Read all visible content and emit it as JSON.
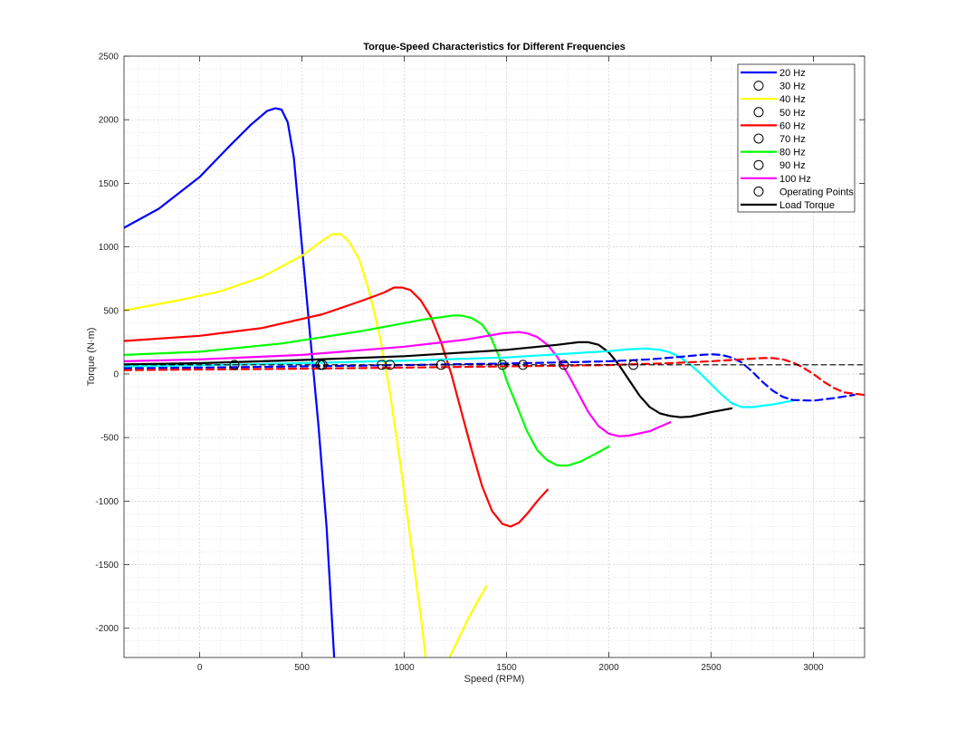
{
  "chart_data": {
    "type": "line",
    "title": "Torque-Speed Characteristics for Different Frequencies",
    "xlabel": "Speed (RPM)",
    "ylabel": "Torque (N·m)",
    "xlim": [
      -370,
      3250
    ],
    "ylim": [
      -2230,
      2500
    ],
    "xticks": [
      0,
      500,
      1000,
      1500,
      2000,
      2500,
      3000
    ],
    "yticks": [
      -2000,
      -1500,
      -1000,
      -500,
      0,
      500,
      1000,
      1500,
      2000,
      2500
    ],
    "grid": true,
    "minor_grid": true,
    "legend_position": "top-right",
    "legend": [
      {
        "label": "20 Hz",
        "marker": "line",
        "color": "#0000FF"
      },
      {
        "label": "30 Hz",
        "marker": "circle",
        "color": "#000000"
      },
      {
        "label": "40 Hz",
        "marker": "line",
        "color": "#FFFF00"
      },
      {
        "label": "50 Hz",
        "marker": "circle",
        "color": "#000000"
      },
      {
        "label": "60 Hz",
        "marker": "line",
        "color": "#FF0000"
      },
      {
        "label": "70 Hz",
        "marker": "circle",
        "color": "#000000"
      },
      {
        "label": "80 Hz",
        "marker": "line",
        "color": "#00FF00"
      },
      {
        "label": "90 Hz",
        "marker": "circle",
        "color": "#000000"
      },
      {
        "label": "100 Hz",
        "marker": "line",
        "color": "#FF00FF"
      },
      {
        "label": "Operating Points",
        "marker": "circle",
        "color": "#000000"
      },
      {
        "label": "Load Torque",
        "marker": "line",
        "color": "#000000"
      }
    ],
    "series": [
      {
        "name": "20 Hz",
        "color": "#0000FF",
        "dash": false,
        "x": [
          -370,
          -200,
          0,
          150,
          250,
          330,
          370,
          400,
          430,
          460,
          500,
          540,
          580,
          620,
          660
        ],
        "y": [
          1150,
          1300,
          1550,
          1800,
          1960,
          2070,
          2090,
          2080,
          1980,
          1700,
          1000,
          300,
          -400,
          -1200,
          -2300
        ]
      },
      {
        "name": "40 Hz",
        "color": "#FFFF00",
        "dash": false,
        "x": [
          -370,
          -100,
          100,
          300,
          500,
          600,
          650,
          690,
          730,
          780,
          830,
          880,
          930,
          980,
          1030,
          1080,
          1110
        ],
        "y": [
          500,
          580,
          650,
          760,
          930,
          1050,
          1100,
          1100,
          1040,
          900,
          640,
          300,
          -150,
          -700,
          -1300,
          -1900,
          -2300
        ]
      },
      {
        "name": "40 Hz",
        "color": "#FFFF00",
        "dash": false,
        "x": [
          1200,
          1260,
          1320,
          1400
        ],
        "y": [
          -2300,
          -2100,
          -1900,
          -1670
        ]
      },
      {
        "name": "60 Hz",
        "color": "#FF0000",
        "dash": false,
        "x": [
          -370,
          0,
          300,
          600,
          800,
          900,
          950,
          990,
          1030,
          1080,
          1130,
          1180,
          1230,
          1280,
          1330,
          1380,
          1430,
          1480,
          1520,
          1560,
          1600,
          1650,
          1700
        ],
        "y": [
          260,
          300,
          360,
          470,
          580,
          640,
          680,
          680,
          660,
          580,
          450,
          250,
          0,
          -300,
          -600,
          -880,
          -1080,
          -1180,
          -1200,
          -1170,
          -1100,
          -1000,
          -910
        ]
      },
      {
        "name": "80 Hz",
        "color": "#00FF00",
        "dash": false,
        "x": [
          -370,
          0,
          400,
          800,
          1100,
          1240,
          1280,
          1330,
          1380,
          1420,
          1460,
          1500,
          1550,
          1600,
          1650,
          1700,
          1750,
          1800,
          1860,
          1920,
          2000
        ],
        "y": [
          150,
          175,
          240,
          340,
          430,
          460,
          460,
          440,
          390,
          300,
          150,
          -50,
          -250,
          -450,
          -600,
          -680,
          -720,
          -720,
          -690,
          -640,
          -570
        ]
      },
      {
        "name": "100 Hz",
        "color": "#FF00FF",
        "dash": false,
        "x": [
          -370,
          0,
          500,
          1000,
          1300,
          1480,
          1560,
          1600,
          1650,
          1700,
          1750,
          1800,
          1850,
          1900,
          1950,
          2000,
          2050,
          2100,
          2200,
          2300
        ],
        "y": [
          100,
          115,
          150,
          215,
          270,
          320,
          330,
          320,
          290,
          230,
          130,
          0,
          -150,
          -300,
          -410,
          -470,
          -490,
          -485,
          -450,
          -380
        ]
      },
      {
        "name": "",
        "color": "#000000",
        "dash": false,
        "x": [
          -370,
          0,
          500,
          1000,
          1500,
          1750,
          1850,
          1900,
          1950,
          2000,
          2050,
          2100,
          2150,
          2200,
          2250,
          2300,
          2350,
          2400,
          2500,
          2600
        ],
        "y": [
          75,
          85,
          110,
          140,
          190,
          230,
          250,
          250,
          230,
          170,
          70,
          -50,
          -170,
          -260,
          -310,
          -330,
          -340,
          -335,
          -300,
          -270
        ]
      },
      {
        "name": "",
        "color": "#00FFFF",
        "dash": false,
        "x": [
          -370,
          0,
          500,
          1000,
          1500,
          1800,
          2000,
          2100,
          2180,
          2250,
          2300,
          2350,
          2400,
          2450,
          2500,
          2550,
          2600,
          2650,
          2700,
          2800,
          2900
        ],
        "y": [
          60,
          68,
          85,
          105,
          130,
          160,
          180,
          195,
          200,
          190,
          170,
          130,
          70,
          0,
          -80,
          -160,
          -230,
          -260,
          -260,
          -240,
          -210
        ]
      },
      {
        "name": "",
        "color": "#0000FF",
        "dash": true,
        "x": [
          -370,
          0,
          500,
          1000,
          1500,
          1800,
          2000,
          2200,
          2350,
          2450,
          2500,
          2550,
          2600,
          2650,
          2700,
          2750,
          2800,
          2850,
          2900,
          3000,
          3100,
          3200
        ],
        "y": [
          45,
          50,
          60,
          70,
          82,
          92,
          100,
          115,
          135,
          150,
          155,
          150,
          130,
          90,
          20,
          -60,
          -130,
          -180,
          -205,
          -210,
          -190,
          -165
        ]
      },
      {
        "name": "",
        "color": "#FF0000",
        "dash": true,
        "x": [
          -370,
          0,
          500,
          1000,
          1500,
          2000,
          2300,
          2500,
          2650,
          2750,
          2800,
          2850,
          2900,
          2950,
          3000,
          3050,
          3100,
          3150,
          3250
        ],
        "y": [
          30,
          35,
          42,
          50,
          60,
          70,
          85,
          100,
          115,
          125,
          125,
          115,
          90,
          50,
          0,
          -60,
          -110,
          -145,
          -165
        ]
      },
      {
        "name": "Load Torque",
        "color": "#000000",
        "dash": true,
        "thin": true,
        "x": [
          -370,
          3250
        ],
        "y": [
          72,
          72
        ]
      }
    ],
    "operating_points": {
      "x": [
        170,
        600,
        590,
        890,
        930,
        1180,
        1480,
        1580,
        1780,
        2120
      ],
      "y": [
        72,
        72,
        72,
        72,
        72,
        72,
        72,
        72,
        72,
        72
      ]
    }
  }
}
